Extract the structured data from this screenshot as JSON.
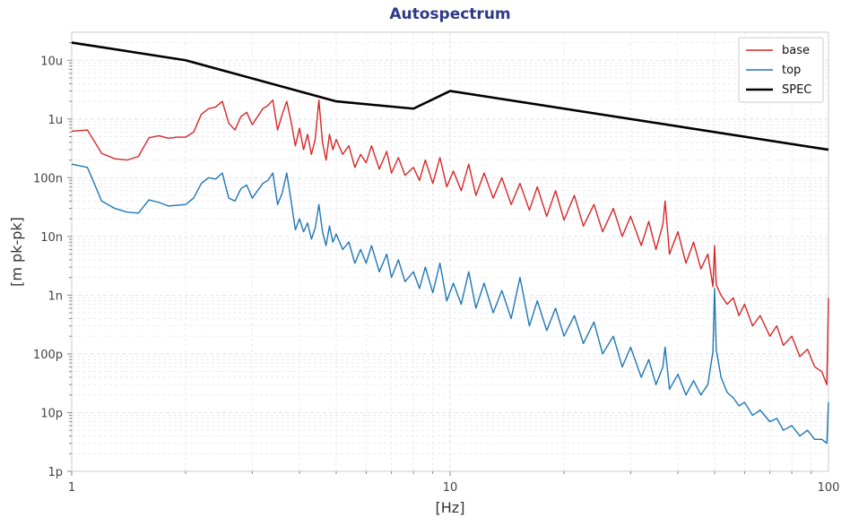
{
  "chart_data": {
    "type": "line",
    "title": "Autospectrum",
    "xlabel": "[Hz]",
    "ylabel": "[m pk-pk]",
    "xscale": "log",
    "yscale": "log",
    "xlim": [
      1,
      100
    ],
    "ylim": [
      1e-12,
      3e-05
    ],
    "grid": true,
    "legend_placement": "top-right",
    "x_ticks": [
      {
        "value": 1,
        "label": "1"
      },
      {
        "value": 10,
        "label": "10"
      },
      {
        "value": 100,
        "label": "100"
      }
    ],
    "y_ticks": [
      {
        "value": 1e-05,
        "label": "10u"
      },
      {
        "value": 1e-06,
        "label": "1u"
      },
      {
        "value": 1e-07,
        "label": "100n"
      },
      {
        "value": 1e-08,
        "label": "10n"
      },
      {
        "value": 1e-09,
        "label": "1n"
      },
      {
        "value": 1e-10,
        "label": "100p"
      },
      {
        "value": 1e-11,
        "label": "10p"
      },
      {
        "value": 1e-12,
        "label": "1p"
      }
    ],
    "series": [
      {
        "name": "base",
        "color": "#d62728",
        "points": [
          [
            1.0,
            6.2e-07
          ],
          [
            1.1,
            6.5e-07
          ],
          [
            1.2,
            2.6e-07
          ],
          [
            1.3,
            2.1e-07
          ],
          [
            1.4,
            2e-07
          ],
          [
            1.5,
            2.3e-07
          ],
          [
            1.6,
            4.8e-07
          ],
          [
            1.7,
            5.2e-07
          ],
          [
            1.8,
            4.7e-07
          ],
          [
            1.9,
            4.9e-07
          ],
          [
            2.0,
            4.9e-07
          ],
          [
            2.1,
            6e-07
          ],
          [
            2.2,
            1.2e-06
          ],
          [
            2.3,
            1.5e-06
          ],
          [
            2.4,
            1.6e-06
          ],
          [
            2.5,
            2e-06
          ],
          [
            2.6,
            8.5e-07
          ],
          [
            2.7,
            6.5e-07
          ],
          [
            2.8,
            1.1e-06
          ],
          [
            2.9,
            1.3e-06
          ],
          [
            3.0,
            8e-07
          ],
          [
            3.2,
            1.5e-06
          ],
          [
            3.3,
            1.7e-06
          ],
          [
            3.4,
            2.1e-06
          ],
          [
            3.5,
            6.5e-07
          ],
          [
            3.6,
            1.2e-06
          ],
          [
            3.7,
            2e-06
          ],
          [
            3.8,
            9e-07
          ],
          [
            3.9,
            3.5e-07
          ],
          [
            4.0,
            7e-07
          ],
          [
            4.1,
            3e-07
          ],
          [
            4.2,
            5.5e-07
          ],
          [
            4.3,
            2.5e-07
          ],
          [
            4.4,
            4.5e-07
          ],
          [
            4.5,
            2.1e-06
          ],
          [
            4.6,
            4e-07
          ],
          [
            4.7,
            2e-07
          ],
          [
            4.8,
            5.5e-07
          ],
          [
            4.9,
            3e-07
          ],
          [
            5.0,
            4.5e-07
          ],
          [
            5.2,
            2.5e-07
          ],
          [
            5.4,
            3.5e-07
          ],
          [
            5.6,
            1.5e-07
          ],
          [
            5.8,
            2.5e-07
          ],
          [
            6.0,
            1.8e-07
          ],
          [
            6.2,
            3.5e-07
          ],
          [
            6.5,
            1.4e-07
          ],
          [
            6.8,
            2.8e-07
          ],
          [
            7.0,
            1.2e-07
          ],
          [
            7.3,
            2.2e-07
          ],
          [
            7.6,
            1.1e-07
          ],
          [
            8.0,
            1.5e-07
          ],
          [
            8.3,
            9e-08
          ],
          [
            8.6,
            2e-07
          ],
          [
            9.0,
            8e-08
          ],
          [
            9.4,
            2.2e-07
          ],
          [
            9.8,
            7e-08
          ],
          [
            10.2,
            1.3e-07
          ],
          [
            10.7,
            6e-08
          ],
          [
            11.2,
            1.7e-07
          ],
          [
            11.7,
            5e-08
          ],
          [
            12.3,
            1.2e-07
          ],
          [
            13.0,
            4.5e-08
          ],
          [
            13.7,
            1e-07
          ],
          [
            14.5,
            3.5e-08
          ],
          [
            15.3,
            8e-08
          ],
          [
            16.2,
            2.8e-08
          ],
          [
            17.0,
            7e-08
          ],
          [
            18.0,
            2.2e-08
          ],
          [
            19.0,
            6e-08
          ],
          [
            20.0,
            1.9e-08
          ],
          [
            21.3,
            5e-08
          ],
          [
            22.5,
            1.5e-08
          ],
          [
            24.0,
            3.5e-08
          ],
          [
            25.3,
            1.2e-08
          ],
          [
            27.0,
            3e-08
          ],
          [
            28.5,
            1e-08
          ],
          [
            30.0,
            2.2e-08
          ],
          [
            32.0,
            7e-09
          ],
          [
            33.5,
            1.8e-08
          ],
          [
            35.0,
            6e-09
          ],
          [
            36.5,
            1.6e-08
          ],
          [
            37.0,
            4e-08
          ],
          [
            38.0,
            5e-09
          ],
          [
            40.0,
            1.2e-08
          ],
          [
            42.0,
            3.5e-09
          ],
          [
            44.0,
            8e-09
          ],
          [
            46.0,
            2.8e-09
          ],
          [
            48.0,
            5e-09
          ],
          [
            49.5,
            1.4e-09
          ],
          [
            50.0,
            7e-09
          ],
          [
            50.5,
            1.5e-09
          ],
          [
            52.0,
            1e-09
          ],
          [
            54.0,
            7e-10
          ],
          [
            56.0,
            9e-10
          ],
          [
            58.0,
            4.5e-10
          ],
          [
            60.0,
            7e-10
          ],
          [
            63.0,
            3e-10
          ],
          [
            66.0,
            4.5e-10
          ],
          [
            70.0,
            2e-10
          ],
          [
            73.0,
            3e-10
          ],
          [
            76.0,
            1.4e-10
          ],
          [
            80.0,
            2e-10
          ],
          [
            84.0,
            9e-11
          ],
          [
            88.0,
            1.2e-10
          ],
          [
            92.0,
            6e-11
          ],
          [
            96.0,
            5e-11
          ],
          [
            99.0,
            3e-11
          ],
          [
            100.0,
            9e-10
          ]
        ]
      },
      {
        "name": "top",
        "color": "#1f77b4",
        "points": [
          [
            1.0,
            1.7e-07
          ],
          [
            1.1,
            1.5e-07
          ],
          [
            1.2,
            4e-08
          ],
          [
            1.3,
            3e-08
          ],
          [
            1.4,
            2.6e-08
          ],
          [
            1.5,
            2.5e-08
          ],
          [
            1.6,
            4.2e-08
          ],
          [
            1.7,
            3.8e-08
          ],
          [
            1.8,
            3.3e-08
          ],
          [
            1.9,
            3.4e-08
          ],
          [
            2.0,
            3.5e-08
          ],
          [
            2.1,
            4.5e-08
          ],
          [
            2.2,
            8e-08
          ],
          [
            2.3,
            1e-07
          ],
          [
            2.4,
            9.5e-08
          ],
          [
            2.5,
            1.2e-07
          ],
          [
            2.6,
            4.5e-08
          ],
          [
            2.7,
            4e-08
          ],
          [
            2.8,
            6.5e-08
          ],
          [
            2.9,
            7.5e-08
          ],
          [
            3.0,
            4.5e-08
          ],
          [
            3.2,
            8e-08
          ],
          [
            3.3,
            9e-08
          ],
          [
            3.4,
            1.2e-07
          ],
          [
            3.5,
            3.5e-08
          ],
          [
            3.6,
            5.5e-08
          ],
          [
            3.7,
            1.2e-07
          ],
          [
            3.8,
            4e-08
          ],
          [
            3.9,
            1.3e-08
          ],
          [
            4.0,
            2e-08
          ],
          [
            4.1,
            1.2e-08
          ],
          [
            4.2,
            1.7e-08
          ],
          [
            4.3,
            9e-09
          ],
          [
            4.4,
            1.4e-08
          ],
          [
            4.5,
            3.5e-08
          ],
          [
            4.6,
            1.2e-08
          ],
          [
            4.7,
            7e-09
          ],
          [
            4.8,
            1.5e-08
          ],
          [
            4.9,
            8e-09
          ],
          [
            5.0,
            1.1e-08
          ],
          [
            5.2,
            6e-09
          ],
          [
            5.4,
            8e-09
          ],
          [
            5.6,
            3.5e-09
          ],
          [
            5.8,
            6e-09
          ],
          [
            6.0,
            3.5e-09
          ],
          [
            6.2,
            7e-09
          ],
          [
            6.5,
            2.5e-09
          ],
          [
            6.8,
            5e-09
          ],
          [
            7.0,
            2e-09
          ],
          [
            7.3,
            4e-09
          ],
          [
            7.6,
            1.7e-09
          ],
          [
            8.0,
            2.5e-09
          ],
          [
            8.3,
            1.3e-09
          ],
          [
            8.6,
            3e-09
          ],
          [
            9.0,
            1.1e-09
          ],
          [
            9.4,
            3.5e-09
          ],
          [
            9.8,
            8e-10
          ],
          [
            10.2,
            1.6e-09
          ],
          [
            10.7,
            7e-10
          ],
          [
            11.2,
            2.5e-09
          ],
          [
            11.7,
            6e-10
          ],
          [
            12.3,
            1.6e-09
          ],
          [
            13.0,
            5e-10
          ],
          [
            13.7,
            1.2e-09
          ],
          [
            14.5,
            4e-10
          ],
          [
            15.3,
            2e-09
          ],
          [
            16.2,
            3e-10
          ],
          [
            17.0,
            8e-10
          ],
          [
            18.0,
            2.5e-10
          ],
          [
            19.0,
            6e-10
          ],
          [
            20.0,
            2e-10
          ],
          [
            21.3,
            4.5e-10
          ],
          [
            22.5,
            1.5e-10
          ],
          [
            24.0,
            3.5e-10
          ],
          [
            25.3,
            1e-10
          ],
          [
            27.0,
            2e-10
          ],
          [
            28.5,
            6e-11
          ],
          [
            30.0,
            1.3e-10
          ],
          [
            32.0,
            4e-11
          ],
          [
            33.5,
            8e-11
          ],
          [
            35.0,
            3e-11
          ],
          [
            36.5,
            6e-11
          ],
          [
            37.0,
            1.3e-10
          ],
          [
            38.0,
            2.5e-11
          ],
          [
            40.0,
            4.5e-11
          ],
          [
            42.0,
            2e-11
          ],
          [
            44.0,
            3.5e-11
          ],
          [
            46.0,
            2e-11
          ],
          [
            48.0,
            3e-11
          ],
          [
            49.5,
            1.1e-10
          ],
          [
            50.0,
            1.3e-09
          ],
          [
            50.5,
            1.2e-10
          ],
          [
            52.0,
            4e-11
          ],
          [
            54.0,
            2.2e-11
          ],
          [
            56.0,
            1.8e-11
          ],
          [
            58.0,
            1.3e-11
          ],
          [
            60.0,
            1.5e-11
          ],
          [
            63.0,
            9e-12
          ],
          [
            66.0,
            1.1e-11
          ],
          [
            70.0,
            7e-12
          ],
          [
            73.0,
            8e-12
          ],
          [
            76.0,
            5e-12
          ],
          [
            80.0,
            6e-12
          ],
          [
            84.0,
            4e-12
          ],
          [
            88.0,
            5e-12
          ],
          [
            92.0,
            3.5e-12
          ],
          [
            96.0,
            3.5e-12
          ],
          [
            99.0,
            3e-12
          ],
          [
            100.0,
            1.5e-11
          ]
        ]
      },
      {
        "name": "SPEC",
        "color": "#000000",
        "points": [
          [
            1,
            2e-05
          ],
          [
            2,
            1e-05
          ],
          [
            5,
            2e-06
          ],
          [
            8,
            1.5e-06
          ],
          [
            10,
            3e-06
          ],
          [
            100,
            3e-07
          ]
        ]
      }
    ]
  }
}
